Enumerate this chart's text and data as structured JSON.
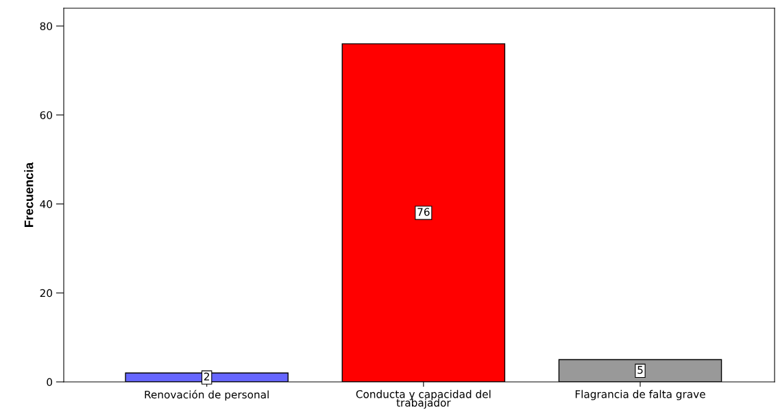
{
  "chart_data": {
    "type": "bar",
    "ylabel": "Frecuencia",
    "categories": [
      "Renovación de personal",
      "Conducta y capacidad del\ntrabajador",
      "Flagrancia de falta grave"
    ],
    "values": [
      2,
      76,
      5
    ],
    "colors": [
      "#6666ff",
      "#ff0000",
      "#999999"
    ],
    "ylim": [
      0,
      84
    ],
    "yticks": [
      0,
      20,
      40,
      60,
      80
    ],
    "data_labels": true,
    "grid": false,
    "legend": false
  }
}
